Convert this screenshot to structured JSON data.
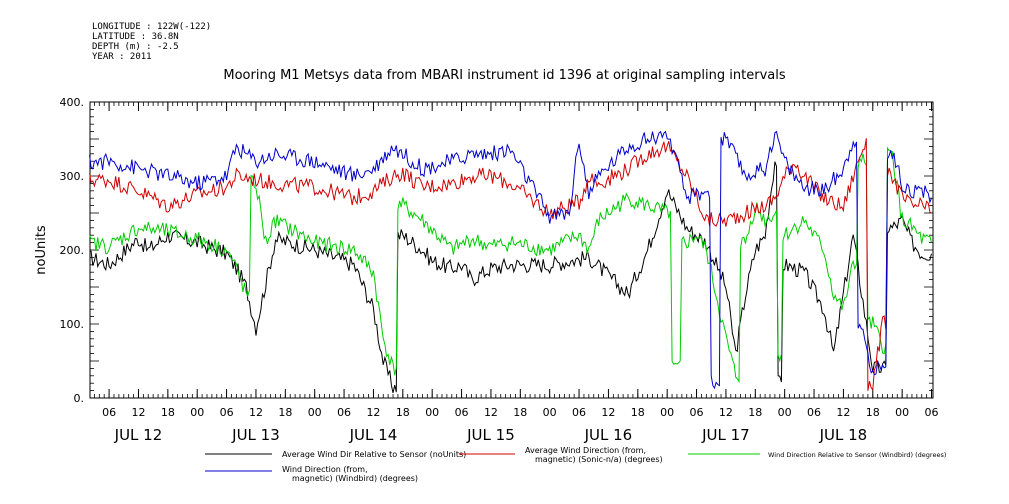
{
  "header": {
    "longitude": "LONGITUDE : 122W(-122)",
    "latitude": "LATITUDE : 36.8N",
    "depth": "DEPTH (m) : -2.5",
    "year": "YEAR : 2011",
    "title": "Mooring M1 Metsys data from MBARI instrument id 1396 at original sampling intervals"
  },
  "chart_data": {
    "type": "line",
    "title": "Mooring M1 Metsys data from MBARI instrument id 1396 at original sampling intervals",
    "ylabel": "noUnits",
    "xlabel": "",
    "ylim": [
      0,
      400
    ],
    "yticks": [
      0,
      100,
      200,
      300,
      400
    ],
    "ytick_labels": [
      "0.",
      "100.",
      "200.",
      "300.",
      "400."
    ],
    "hour_tick_labels": [
      "06",
      "12",
      "18",
      "00",
      "06",
      "12",
      "18",
      "00",
      "06",
      "12",
      "18",
      "00",
      "06",
      "12",
      "18",
      "00",
      "06",
      "12",
      "18",
      "00",
      "06",
      "12",
      "18",
      "00",
      "06",
      "12",
      "18",
      "00",
      "06",
      "12",
      "18",
      "00"
    ],
    "day_labels": [
      "JUL 12",
      "JUL 13",
      "JUL 14",
      "JUL 15",
      "JUL 16",
      "JUL 17",
      "JUL 18"
    ],
    "x_units": "hours since JUL 12 00:00",
    "xlim": [
      2.1,
      174.3
    ],
    "series": [
      {
        "name": "Average Wind Dir Relative to Sensor (noUnits)",
        "color": "#000000",
        "x": [
          2,
          6,
          12,
          14,
          18,
          24,
          30,
          32,
          34,
          36,
          40,
          48,
          56,
          60,
          62,
          64,
          66,
          70,
          72,
          76,
          78,
          80,
          84,
          88,
          96,
          104,
          112,
          116,
          120,
          124,
          128,
          132,
          134,
          136,
          138,
          140,
          142,
          143,
          144,
          148,
          152,
          154,
          156,
          158,
          160,
          162,
          164,
          166,
          168,
          170,
          172,
          174
        ],
        "y": [
          190,
          180,
          215,
          200,
          220,
          210,
          195,
          175,
          150,
          95,
          215,
          200,
          180,
          120,
          50,
          15,
          220,
          200,
          185,
          175,
          180,
          160,
          175,
          180,
          180,
          190,
          140,
          200,
          280,
          230,
          210,
          150,
          60,
          140,
          200,
          220,
          320,
          20,
          180,
          170,
          120,
          60,
          140,
          220,
          130,
          40,
          40,
          230,
          240,
          210,
          195,
          195
        ]
      },
      {
        "name": "Average Wind Direction (from, magnetic) (Sonic-n/a) (degrees)",
        "color": "#d00000",
        "x": [
          2,
          6,
          12,
          18,
          24,
          30,
          32,
          36,
          40,
          48,
          56,
          60,
          64,
          66,
          70,
          76,
          80,
          84,
          88,
          96,
          102,
          104,
          106,
          112,
          116,
          120,
          124,
          128,
          132,
          136,
          140,
          142,
          144,
          146,
          148,
          152,
          156,
          158,
          160,
          162,
          164,
          166,
          168,
          170,
          172,
          174
        ],
        "y": [
          295,
          295,
          280,
          260,
          275,
          285,
          300,
          295,
          290,
          285,
          270,
          280,
          300,
          305,
          285,
          290,
          300,
          300,
          290,
          250,
          265,
          300,
          290,
          310,
          330,
          340,
          300,
          240,
          240,
          250,
          260,
          270,
          300,
          320,
          300,
          270,
          258,
          300,
          340,
          20,
          100,
          300,
          270,
          260,
          260,
          250
        ]
      },
      {
        "name": "Wind Direction Relative to Sensor (Windbird) (degrees)",
        "color": "#00cc00",
        "x": [
          2,
          6,
          12,
          18,
          24,
          30,
          32,
          34,
          36,
          38,
          40,
          48,
          56,
          60,
          62,
          64,
          66,
          70,
          76,
          80,
          84,
          88,
          96,
          102,
          104,
          106,
          112,
          116,
          120,
          122,
          124,
          126,
          128,
          132,
          134,
          136,
          138,
          140,
          142,
          143,
          144,
          148,
          152,
          154,
          156,
          158,
          160,
          162,
          164,
          166,
          168,
          170,
          172,
          174
        ],
        "y": [
          210,
          205,
          230,
          225,
          215,
          200,
          175,
          140,
          290,
          210,
          240,
          210,
          200,
          170,
          80,
          40,
          260,
          240,
          200,
          215,
          205,
          210,
          200,
          220,
          200,
          240,
          270,
          260,
          250,
          40,
          210,
          220,
          200,
          80,
          30,
          210,
          260,
          240,
          250,
          60,
          220,
          240,
          200,
          140,
          120,
          180,
          320,
          100,
          70,
          330,
          240,
          230,
          215,
          210
        ]
      },
      {
        "name": "Wind Direction (from, magnetic) (Windbird) (degrees)",
        "color": "#0000cc",
        "x": [
          2,
          6,
          12,
          18,
          24,
          30,
          32,
          36,
          40,
          48,
          56,
          60,
          64,
          66,
          70,
          76,
          80,
          84,
          88,
          96,
          100,
          102,
          104,
          106,
          112,
          116,
          120,
          124,
          128,
          130,
          132,
          136,
          140,
          142,
          144,
          146,
          148,
          152,
          156,
          158,
          160,
          162,
          164,
          166,
          168,
          170,
          172,
          174
        ],
        "y": [
          318,
          320,
          310,
          300,
          290,
          300,
          340,
          320,
          330,
          320,
          300,
          310,
          340,
          330,
          310,
          320,
          330,
          330,
          335,
          245,
          250,
          350,
          275,
          300,
          340,
          350,
          360,
          270,
          280,
          20,
          350,
          300,
          310,
          360,
          320,
          300,
          285,
          280,
          310,
          350,
          90,
          30,
          50,
          330,
          290,
          280,
          280,
          270
        ]
      }
    ],
    "legend": [
      "Average Wind Dir Relative to Sensor (noUnits)",
      "Average Wind Direction (from,\nmagnetic) (Sonic-n/a) (degrees)",
      "Wind Direction Relative to Sensor (Windbird) (degrees)",
      "Wind Direction (from,\nmagnetic) (Windbird) (degrees)"
    ],
    "legend_position": "bottom",
    "grid": false
  }
}
